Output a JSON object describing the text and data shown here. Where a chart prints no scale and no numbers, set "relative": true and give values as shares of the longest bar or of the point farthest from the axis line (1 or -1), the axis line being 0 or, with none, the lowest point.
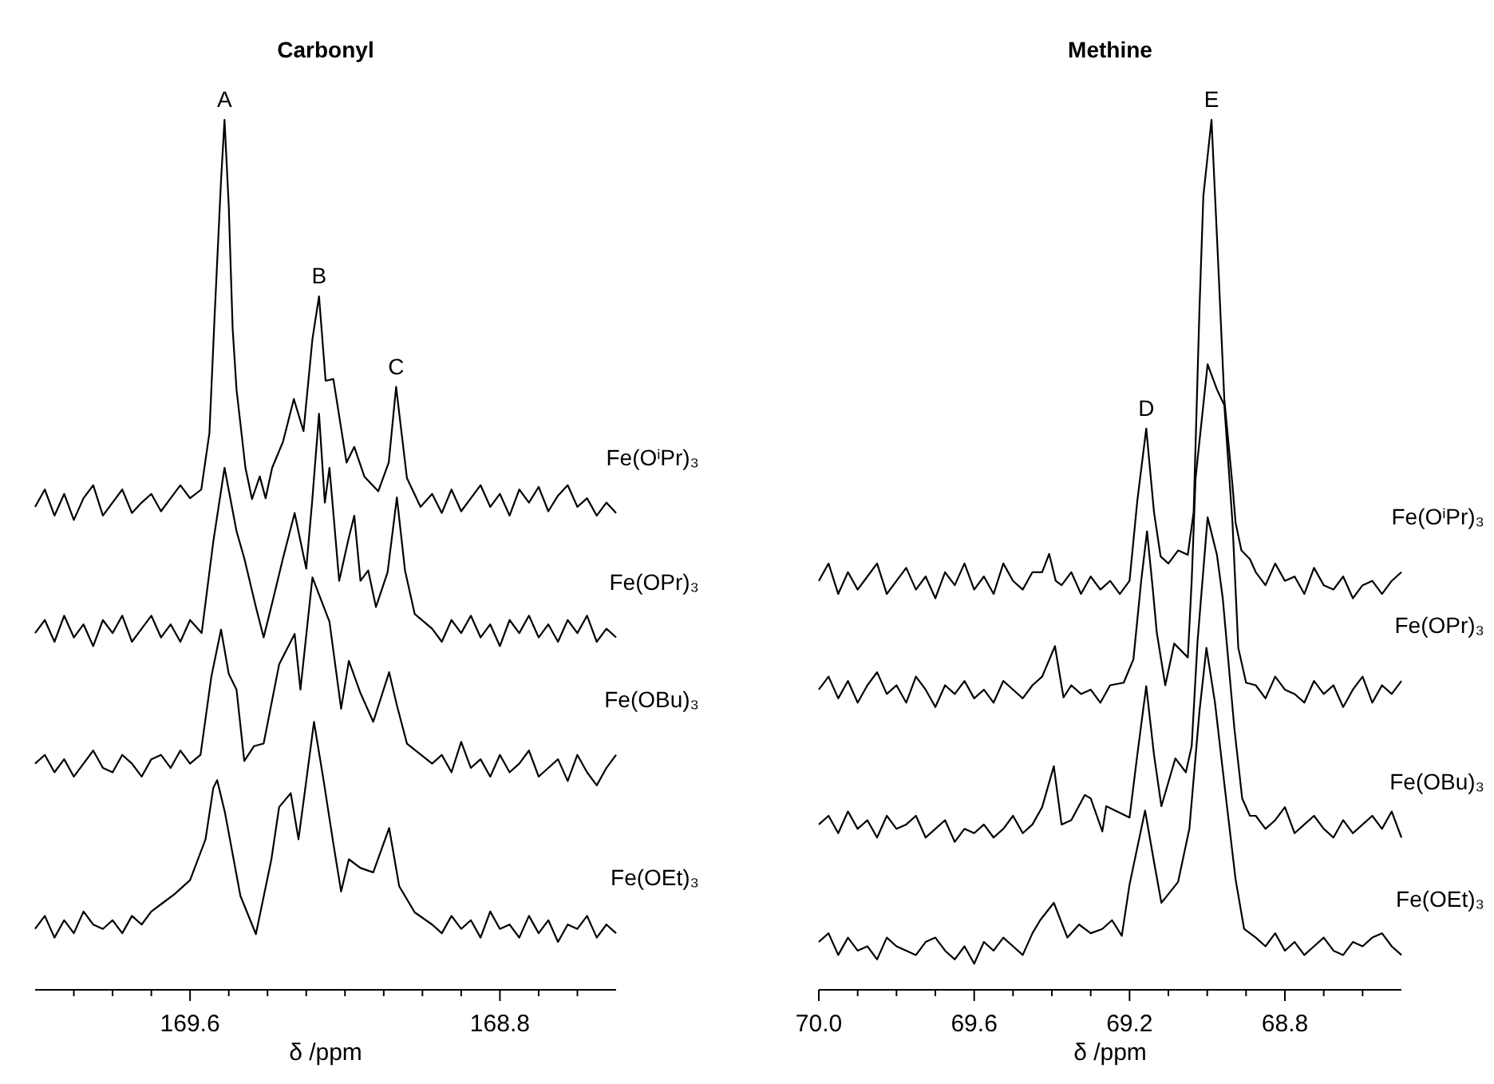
{
  "chart_data": [
    {
      "type": "line",
      "title": "Carbonyl",
      "xlabel": "δ /ppm",
      "relative": true,
      "xlim": [
        170.0,
        168.5
      ],
      "xticks": [
        {
          "value": 169.9,
          "label": null
        },
        {
          "value": 169.8,
          "label": null
        },
        {
          "value": 169.7,
          "label": null
        },
        169.6,
        {
          "value": 169.5,
          "label": null
        },
        {
          "value": 169.4,
          "label": null
        },
        {
          "value": 169.3,
          "label": null
        },
        {
          "value": 169.2,
          "label": null
        },
        {
          "value": 169.1,
          "label": null
        },
        {
          "value": 169.0,
          "label": null
        },
        {
          "value": 168.9,
          "label": null
        },
        168.8,
        {
          "value": 168.7,
          "label": null
        },
        {
          "value": 168.6,
          "label": null
        }
      ],
      "annotations": [
        {
          "text": "A",
          "x": 169.511,
          "y": 1.0
        },
        {
          "text": "B",
          "x": 169.267,
          "y": 0.797
        },
        {
          "text": "C",
          "x": 169.068,
          "y": 0.693
        }
      ],
      "series": [
        {
          "name": "Fe(OⁱPr)₃",
          "color": "#000000",
          "x": [
            170.0,
            169.975,
            169.95,
            169.925,
            169.9,
            169.875,
            169.85,
            169.825,
            169.8,
            169.775,
            169.75,
            169.725,
            169.7,
            169.675,
            169.65,
            169.625,
            169.6,
            169.571,
            169.55,
            169.536,
            169.52,
            169.511,
            169.5,
            169.49,
            169.48,
            169.457,
            169.44,
            169.42,
            169.405,
            169.388,
            169.36,
            169.332,
            169.307,
            169.284,
            169.267,
            169.25,
            169.23,
            169.196,
            169.176,
            169.15,
            169.114,
            169.087,
            169.068,
            169.04,
            169.005,
            168.975,
            168.95,
            168.925,
            168.9,
            168.875,
            168.85,
            168.825,
            168.8,
            168.775,
            168.75,
            168.725,
            168.7,
            168.675,
            168.65,
            168.625,
            168.6,
            168.575,
            168.55,
            168.525,
            168.5
          ],
          "values": [
            0.555,
            0.575,
            0.545,
            0.57,
            0.54,
            0.565,
            0.58,
            0.545,
            0.56,
            0.575,
            0.548,
            0.56,
            0.57,
            0.55,
            0.565,
            0.58,
            0.565,
            0.575,
            0.64,
            0.78,
            0.93,
            1.0,
            0.9,
            0.76,
            0.69,
            0.6,
            0.564,
            0.59,
            0.565,
            0.6,
            0.63,
            0.679,
            0.642,
            0.748,
            0.797,
            0.7,
            0.702,
            0.606,
            0.624,
            0.59,
            0.573,
            0.606,
            0.693,
            0.588,
            0.555,
            0.57,
            0.548,
            0.575,
            0.55,
            0.565,
            0.58,
            0.555,
            0.57,
            0.545,
            0.575,
            0.56,
            0.578,
            0.55,
            0.568,
            0.58,
            0.555,
            0.565,
            0.545,
            0.56,
            0.548
          ]
        },
        {
          "name": "Fe(OPr)₃",
          "color": "#000000",
          "x": [
            170.0,
            169.975,
            169.95,
            169.925,
            169.9,
            169.875,
            169.85,
            169.825,
            169.8,
            169.775,
            169.75,
            169.725,
            169.7,
            169.675,
            169.65,
            169.625,
            169.6,
            169.57,
            169.54,
            169.511,
            169.48,
            169.46,
            169.43,
            169.41,
            169.385,
            169.36,
            169.33,
            169.3,
            169.285,
            169.267,
            169.252,
            169.24,
            169.215,
            169.19,
            169.176,
            169.16,
            169.14,
            169.12,
            169.09,
            169.066,
            169.045,
            169.02,
            168.975,
            168.95,
            168.925,
            168.9,
            168.875,
            168.85,
            168.825,
            168.8,
            168.775,
            168.75,
            168.725,
            168.7,
            168.675,
            168.65,
            168.625,
            168.6,
            168.575,
            168.55,
            168.525,
            168.5
          ],
          "values": [
            0.41,
            0.425,
            0.4,
            0.43,
            0.405,
            0.42,
            0.395,
            0.425,
            0.41,
            0.43,
            0.4,
            0.415,
            0.43,
            0.405,
            0.42,
            0.4,
            0.425,
            0.41,
            0.515,
            0.6,
            0.527,
            0.496,
            0.44,
            0.405,
            0.45,
            0.496,
            0.548,
            0.484,
            0.56,
            0.662,
            0.56,
            0.6,
            0.47,
            0.52,
            0.545,
            0.47,
            0.482,
            0.44,
            0.48,
            0.566,
            0.482,
            0.432,
            0.415,
            0.4,
            0.425,
            0.41,
            0.43,
            0.405,
            0.42,
            0.395,
            0.425,
            0.41,
            0.43,
            0.405,
            0.42,
            0.4,
            0.425,
            0.41,
            0.43,
            0.4,
            0.415,
            0.405
          ]
        },
        {
          "name": "Fe(OBu)₃",
          "color": "#000000",
          "x": [
            170.0,
            169.975,
            169.95,
            169.925,
            169.9,
            169.875,
            169.85,
            169.825,
            169.8,
            169.775,
            169.75,
            169.725,
            169.7,
            169.675,
            169.65,
            169.625,
            169.6,
            169.573,
            169.545,
            169.52,
            169.5,
            169.48,
            169.46,
            169.435,
            169.41,
            169.37,
            169.33,
            169.315,
            169.284,
            169.24,
            169.21,
            169.19,
            169.16,
            169.127,
            169.086,
            169.066,
            169.04,
            168.975,
            168.95,
            168.925,
            168.9,
            168.875,
            168.85,
            168.825,
            168.8,
            168.775,
            168.75,
            168.725,
            168.7,
            168.675,
            168.65,
            168.625,
            168.6,
            168.575,
            168.55,
            168.525,
            168.5
          ],
          "values": [
            0.26,
            0.27,
            0.25,
            0.265,
            0.245,
            0.26,
            0.275,
            0.255,
            0.25,
            0.27,
            0.26,
            0.245,
            0.265,
            0.27,
            0.255,
            0.275,
            0.26,
            0.27,
            0.36,
            0.414,
            0.363,
            0.345,
            0.263,
            0.28,
            0.283,
            0.374,
            0.409,
            0.345,
            0.474,
            0.423,
            0.323,
            0.378,
            0.341,
            0.308,
            0.365,
            0.327,
            0.283,
            0.26,
            0.27,
            0.25,
            0.285,
            0.255,
            0.265,
            0.245,
            0.27,
            0.25,
            0.26,
            0.275,
            0.245,
            0.255,
            0.265,
            0.24,
            0.27,
            0.25,
            0.235,
            0.255,
            0.27
          ]
        },
        {
          "name": "Fe(OEt)₃",
          "color": "#000000",
          "x": [
            170.0,
            169.975,
            169.95,
            169.925,
            169.9,
            169.875,
            169.85,
            169.825,
            169.8,
            169.775,
            169.75,
            169.725,
            169.7,
            169.67,
            169.64,
            169.6,
            169.56,
            169.54,
            169.53,
            169.51,
            169.47,
            169.43,
            169.39,
            169.37,
            169.34,
            169.32,
            169.3,
            169.28,
            169.255,
            169.23,
            169.21,
            169.19,
            169.16,
            169.127,
            169.086,
            169.06,
            169.02,
            168.975,
            168.95,
            168.925,
            168.9,
            168.875,
            168.85,
            168.825,
            168.8,
            168.775,
            168.75,
            168.725,
            168.7,
            168.675,
            168.65,
            168.625,
            168.6,
            168.575,
            168.55,
            168.525,
            168.5
          ],
          "values": [
            0.07,
            0.085,
            0.06,
            0.08,
            0.065,
            0.09,
            0.075,
            0.07,
            0.08,
            0.065,
            0.085,
            0.075,
            0.09,
            0.1,
            0.11,
            0.126,
            0.173,
            0.232,
            0.241,
            0.204,
            0.108,
            0.064,
            0.15,
            0.21,
            0.226,
            0.173,
            0.24,
            0.308,
            0.24,
            0.168,
            0.113,
            0.15,
            0.14,
            0.135,
            0.186,
            0.119,
            0.089,
            0.075,
            0.065,
            0.085,
            0.07,
            0.08,
            0.06,
            0.09,
            0.07,
            0.075,
            0.06,
            0.085,
            0.065,
            0.08,
            0.055,
            0.075,
            0.07,
            0.085,
            0.06,
            0.075,
            0.065
          ]
        }
      ]
    },
    {
      "type": "line",
      "title": "Methine",
      "xlabel": "δ /ppm",
      "relative": true,
      "xlim": [
        70.0,
        68.5
      ],
      "xticks": [
        {
          "value": 70,
          "label": "70.0"
        },
        {
          "value": 69.9,
          "label": null
        },
        {
          "value": 69.8,
          "label": null
        },
        {
          "value": 69.7,
          "label": null
        },
        69.6,
        {
          "value": 69.5,
          "label": null
        },
        {
          "value": 69.4,
          "label": null
        },
        {
          "value": 69.3,
          "label": null
        },
        69.2,
        {
          "value": 69.1,
          "label": null
        },
        {
          "value": 69.0,
          "label": null
        },
        {
          "value": 68.9,
          "label": null
        },
        68.8,
        {
          "value": 68.7,
          "label": null
        },
        {
          "value": 68.6,
          "label": null
        }
      ],
      "annotations": [
        {
          "text": "D",
          "x": 69.157,
          "y": 0.645
        },
        {
          "text": "E",
          "x": 68.989,
          "y": 1.0
        }
      ],
      "series": [
        {
          "name": "Fe(OⁱPr)₃",
          "color": "#000000",
          "x": [
            70.0,
            69.975,
            69.95,
            69.925,
            69.9,
            69.875,
            69.85,
            69.825,
            69.8,
            69.775,
            69.75,
            69.725,
            69.7,
            69.675,
            69.65,
            69.625,
            69.6,
            69.575,
            69.55,
            69.525,
            69.5,
            69.475,
            69.45,
            69.425,
            69.407,
            69.39,
            69.375,
            69.35,
            69.325,
            69.3,
            69.275,
            69.25,
            69.225,
            69.2,
            69.18,
            69.157,
            69.137,
            69.12,
            69.1,
            69.075,
            69.05,
            69.035,
            69.02,
            69.01,
            68.989,
            68.973,
            68.956,
            68.935,
            68.927,
            68.912,
            68.89,
            68.875,
            68.85,
            68.825,
            68.8,
            68.775,
            68.75,
            68.725,
            68.7,
            68.675,
            68.65,
            68.625,
            68.6,
            68.575,
            68.55,
            68.525,
            68.5
          ],
          "values": [
            0.47,
            0.49,
            0.455,
            0.48,
            0.46,
            0.475,
            0.49,
            0.455,
            0.47,
            0.485,
            0.46,
            0.475,
            0.45,
            0.48,
            0.465,
            0.49,
            0.46,
            0.475,
            0.455,
            0.49,
            0.47,
            0.46,
            0.48,
            0.48,
            0.501,
            0.47,
            0.465,
            0.48,
            0.455,
            0.475,
            0.46,
            0.47,
            0.455,
            0.47,
            0.562,
            0.645,
            0.549,
            0.498,
            0.49,
            0.505,
            0.5,
            0.549,
            0.782,
            0.912,
            1.0,
            0.847,
            0.679,
            0.58,
            0.537,
            0.505,
            0.495,
            0.48,
            0.465,
            0.49,
            0.47,
            0.475,
            0.455,
            0.485,
            0.465,
            0.46,
            0.475,
            0.45,
            0.465,
            0.47,
            0.455,
            0.47,
            0.48
          ]
        },
        {
          "name": "Fe(OPr)₃",
          "color": "#000000",
          "x": [
            70.0,
            69.975,
            69.95,
            69.925,
            69.9,
            69.875,
            69.85,
            69.825,
            69.8,
            69.775,
            69.75,
            69.725,
            69.7,
            69.675,
            69.65,
            69.625,
            69.6,
            69.575,
            69.55,
            69.525,
            69.5,
            69.475,
            69.45,
            69.425,
            69.392,
            69.37,
            69.35,
            69.325,
            69.3,
            69.275,
            69.25,
            69.215,
            69.19,
            69.17,
            69.155,
            69.14,
            69.13,
            69.108,
            69.085,
            69.05,
            69.04,
            69.03,
            68.999,
            68.975,
            68.956,
            68.935,
            68.92,
            68.9,
            68.875,
            68.85,
            68.825,
            68.8,
            68.775,
            68.75,
            68.725,
            68.7,
            68.675,
            68.65,
            68.625,
            68.6,
            68.575,
            68.55,
            68.525,
            68.5
          ],
          "values": [
            0.345,
            0.36,
            0.335,
            0.355,
            0.33,
            0.35,
            0.365,
            0.34,
            0.35,
            0.33,
            0.36,
            0.345,
            0.325,
            0.35,
            0.34,
            0.355,
            0.335,
            0.345,
            0.33,
            0.355,
            0.345,
            0.335,
            0.35,
            0.36,
            0.395,
            0.336,
            0.35,
            0.34,
            0.345,
            0.33,
            0.35,
            0.353,
            0.38,
            0.47,
            0.527,
            0.46,
            0.411,
            0.35,
            0.398,
            0.382,
            0.47,
            0.588,
            0.719,
            0.69,
            0.672,
            0.537,
            0.393,
            0.353,
            0.35,
            0.335,
            0.36,
            0.345,
            0.34,
            0.33,
            0.355,
            0.34,
            0.35,
            0.325,
            0.345,
            0.36,
            0.33,
            0.35,
            0.34,
            0.355
          ]
        },
        {
          "name": "Fe(OBu)₃",
          "color": "#000000",
          "x": [
            70.0,
            69.975,
            69.95,
            69.925,
            69.9,
            69.875,
            69.85,
            69.825,
            69.8,
            69.775,
            69.75,
            69.725,
            69.7,
            69.675,
            69.65,
            69.625,
            69.6,
            69.575,
            69.55,
            69.525,
            69.5,
            69.475,
            69.45,
            69.425,
            69.395,
            69.375,
            69.35,
            69.315,
            69.3,
            69.27,
            69.26,
            69.2,
            69.18,
            69.157,
            69.137,
            69.118,
            69.082,
            69.055,
            69.04,
            69.025,
            68.999,
            68.975,
            68.96,
            68.93,
            68.91,
            68.89,
            68.875,
            68.85,
            68.825,
            68.8,
            68.775,
            68.75,
            68.725,
            68.7,
            68.675,
            68.65,
            68.625,
            68.6,
            68.575,
            68.55,
            68.525,
            68.5
          ],
          "values": [
            0.19,
            0.2,
            0.18,
            0.205,
            0.185,
            0.195,
            0.175,
            0.2,
            0.185,
            0.19,
            0.2,
            0.175,
            0.185,
            0.195,
            0.17,
            0.185,
            0.18,
            0.19,
            0.175,
            0.185,
            0.2,
            0.18,
            0.19,
            0.21,
            0.257,
            0.19,
            0.195,
            0.224,
            0.22,
            0.182,
            0.211,
            0.198,
            0.27,
            0.349,
            0.27,
            0.211,
            0.266,
            0.25,
            0.28,
            0.4,
            0.543,
            0.5,
            0.45,
            0.3,
            0.22,
            0.2,
            0.2,
            0.185,
            0.195,
            0.21,
            0.18,
            0.19,
            0.2,
            0.185,
            0.175,
            0.195,
            0.18,
            0.19,
            0.2,
            0.185,
            0.205,
            0.175
          ]
        },
        {
          "name": "Fe(OEt)₃",
          "color": "#000000",
          "x": [
            70.0,
            69.975,
            69.95,
            69.925,
            69.9,
            69.875,
            69.85,
            69.825,
            69.8,
            69.775,
            69.75,
            69.725,
            69.7,
            69.675,
            69.65,
            69.625,
            69.6,
            69.575,
            69.55,
            69.525,
            69.5,
            69.475,
            69.45,
            69.43,
            69.395,
            69.36,
            69.33,
            69.3,
            69.27,
            69.245,
            69.22,
            69.2,
            69.16,
            69.137,
            69.118,
            69.1,
            69.075,
            69.046,
            69.02,
            69.002,
            68.98,
            68.956,
            68.927,
            68.905,
            68.875,
            68.85,
            68.825,
            68.8,
            68.775,
            68.75,
            68.725,
            68.7,
            68.675,
            68.65,
            68.625,
            68.6,
            68.575,
            68.55,
            68.525,
            68.5
          ],
          "values": [
            0.055,
            0.065,
            0.04,
            0.06,
            0.045,
            0.05,
            0.035,
            0.06,
            0.05,
            0.045,
            0.04,
            0.055,
            0.06,
            0.045,
            0.035,
            0.05,
            0.03,
            0.055,
            0.045,
            0.06,
            0.05,
            0.04,
            0.065,
            0.08,
            0.1,
            0.06,
            0.075,
            0.065,
            0.07,
            0.08,
            0.062,
            0.121,
            0.206,
            0.147,
            0.1,
            0.11,
            0.124,
            0.185,
            0.32,
            0.393,
            0.33,
            0.237,
            0.127,
            0.07,
            0.06,
            0.05,
            0.065,
            0.045,
            0.055,
            0.04,
            0.05,
            0.06,
            0.045,
            0.04,
            0.055,
            0.05,
            0.06,
            0.065,
            0.05,
            0.04
          ]
        }
      ]
    }
  ]
}
